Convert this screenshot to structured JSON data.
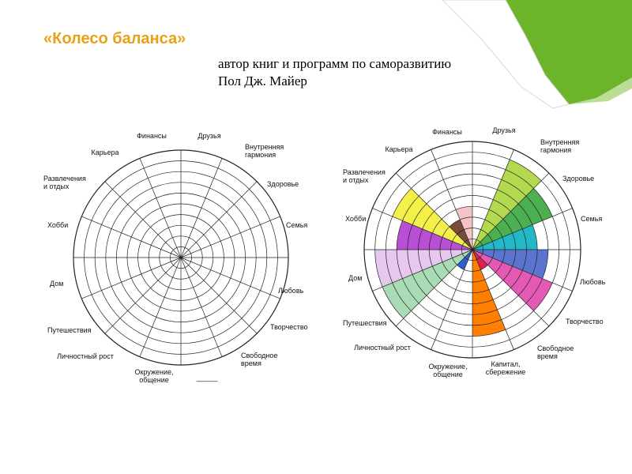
{
  "slide": {
    "title": "«Колесо баланса»",
    "subtitle_line1": "автор книг и программ по саморазвитию",
    "subtitle_line2": "Пол Дж. Майер"
  },
  "colors": {
    "title": "#e8a116",
    "curl_green": "#6cb52b",
    "curl_light": "#cfe8b4",
    "grid": "#222222"
  },
  "chart_data": [
    {
      "type": "radial-bar",
      "title": "",
      "scale_max": 10,
      "ring_count": 10,
      "grid": true,
      "categories": [
        {
          "label": [
            "Финансы"
          ],
          "value": 0
        },
        {
          "label": [
            "Друзья"
          ],
          "value": 0
        },
        {
          "label": [
            "Внутренняя",
            "гармония"
          ],
          "value": 0
        },
        {
          "label": [
            "Здоровье"
          ],
          "value": 0
        },
        {
          "label": [
            "Семья"
          ],
          "value": 0
        },
        {
          "label": [
            "Любовь"
          ],
          "value": 0
        },
        {
          "label": [
            "Творчество"
          ],
          "value": 0
        },
        {
          "label": [
            "Свободное",
            "время"
          ],
          "value": 0
        },
        {
          "label": [
            "———"
          ],
          "value": 0
        },
        {
          "label": [
            "Окружение,",
            "общение"
          ],
          "value": 0
        },
        {
          "label": [
            "Личностный рост"
          ],
          "value": 0
        },
        {
          "label": [
            "Путешествия"
          ],
          "value": 0
        },
        {
          "label": [
            "Дом"
          ],
          "value": 0
        },
        {
          "label": [
            "Хобби"
          ],
          "value": 0
        },
        {
          "label": [
            "Развлечения",
            "и отдых"
          ],
          "value": 0
        },
        {
          "label": [
            "Карьера"
          ],
          "value": 0
        }
      ]
    },
    {
      "type": "radial-bar",
      "title": "",
      "scale_max": 10,
      "ring_count": 10,
      "grid": true,
      "categories": [
        {
          "label": [
            "Финансы"
          ],
          "value": 0,
          "color": "#ffffff"
        },
        {
          "label": [
            "Друзья"
          ],
          "value": 9,
          "color": "#b3d94f"
        },
        {
          "label": [
            "Внутренняя",
            "гармония"
          ],
          "value": 8,
          "color": "#4caf50"
        },
        {
          "label": [
            "Здоровье"
          ],
          "value": 6,
          "color": "#22b8c8"
        },
        {
          "label": [
            "Семья"
          ],
          "value": 7,
          "color": "#5b74d0"
        },
        {
          "label": [
            "Любовь"
          ],
          "value": 8,
          "color": "#e359b4"
        },
        {
          "label": [
            "Творчество"
          ],
          "value": 2,
          "color": "#e02050"
        },
        {
          "label": [
            "Свободное",
            "время"
          ],
          "value": 8,
          "color": "#ff7f00"
        },
        {
          "label": [
            "Капитал,",
            "сбережение"
          ],
          "value": 0,
          "color": "#ffffff"
        },
        {
          "label": [
            "Окружение,",
            "общение"
          ],
          "value": 2,
          "color": "#2f5bd1"
        },
        {
          "label": [
            "Личностный рост"
          ],
          "value": 9,
          "color": "#a8dcb4"
        },
        {
          "label": [
            "Путешествия"
          ],
          "value": 9,
          "color": "#e6c8ee"
        },
        {
          "label": [
            "Дом"
          ],
          "value": 7,
          "color": "#b84fd4"
        },
        {
          "label": [
            "Хобби"
          ],
          "value": 8,
          "color": "#f4f04a"
        },
        {
          "label": [
            "Развлечения",
            "и отдых"
          ],
          "value": 3,
          "color": "#7a4a3a"
        },
        {
          "label": [
            "Карьера"
          ],
          "value": 4,
          "color": "#f4c4c8"
        }
      ],
      "extra_fills": [
        {
          "label": [
            "Финансы"
          ],
          "value": 1,
          "color": "#f0d078"
        }
      ]
    }
  ]
}
